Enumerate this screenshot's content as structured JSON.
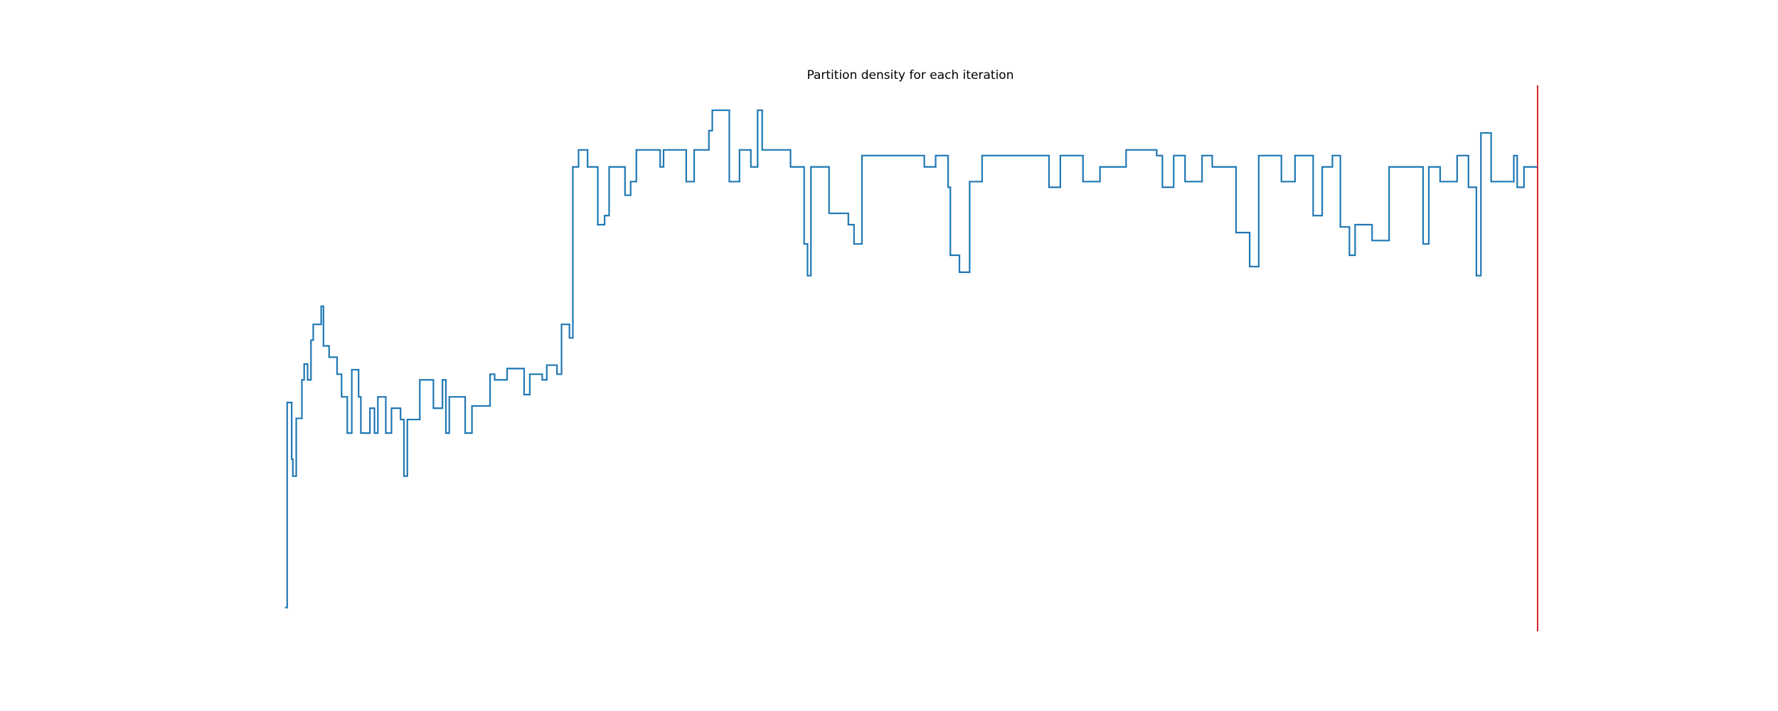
{
  "chart_data": {
    "type": "step",
    "title": "Partition density for each iteration",
    "x": [
      1,
      3,
      7,
      8,
      11,
      16,
      18,
      21,
      24,
      26,
      33,
      35,
      40,
      47,
      51,
      56,
      60,
      66,
      68,
      76,
      80,
      83,
      90,
      95,
      103,
      106,
      109,
      120,
      132,
      140,
      143,
      146,
      160,
      166,
      182,
      186,
      197,
      212,
      217,
      228,
      232,
      241,
      245,
      252,
      255,
      260,
      268,
      277,
      283,
      287,
      301,
      306,
      311,
      332,
      335,
      355,
      362,
      375,
      378,
      390,
      393,
      402,
      412,
      418,
      422,
      447,
      459,
      462,
      465,
      481,
      498,
      503,
      510,
      565,
      575,
      586,
      588,
      596,
      605,
      616,
      675,
      685,
      705,
      720,
      743,
      770,
      775,
      785,
      795,
      810,
      819,
      840,
      852,
      860,
      880,
      892,
      908,
      916,
      925,
      932,
      940,
      945,
      960,
      975,
      1005,
      1010,
      1020,
      1035,
      1045,
      1052,
      1056,
      1065,
      1085,
      1088,
      1094,
      1106
    ],
    "values": [
      21,
      202,
      152,
      137,
      188,
      222,
      236,
      222,
      257,
      271,
      287,
      252,
      242,
      227,
      207,
      175,
      231,
      207,
      175,
      197,
      175,
      207,
      175,
      197,
      187,
      137,
      187,
      222,
      197,
      222,
      175,
      207,
      175,
      199,
      227,
      222,
      232,
      209,
      227,
      222,
      235,
      227,
      271,
      259,
      410,
      425,
      410,
      359,
      367,
      410,
      385,
      397,
      425,
      410,
      425,
      397,
      425,
      442,
      460,
      460,
      397,
      425,
      410,
      460,
      425,
      410,
      342,
      314,
      410,
      369,
      359,
      342,
      420,
      410,
      420,
      392,
      332,
      317,
      397,
      420,
      392,
      420,
      397,
      410,
      425,
      420,
      392,
      420,
      397,
      420,
      410,
      352,
      322,
      420,
      397,
      420,
      367,
      410,
      420,
      357,
      332,
      359,
      345,
      410,
      342,
      410,
      397,
      420,
      392,
      314,
      440,
      397,
      420,
      392,
      410,
      410
    ],
    "color": "#1f77b4",
    "xlim": [
      0,
      1106
    ],
    "ylim": [
      0,
      482
    ],
    "vline_x": 1106,
    "vline_color": "#d62728"
  }
}
